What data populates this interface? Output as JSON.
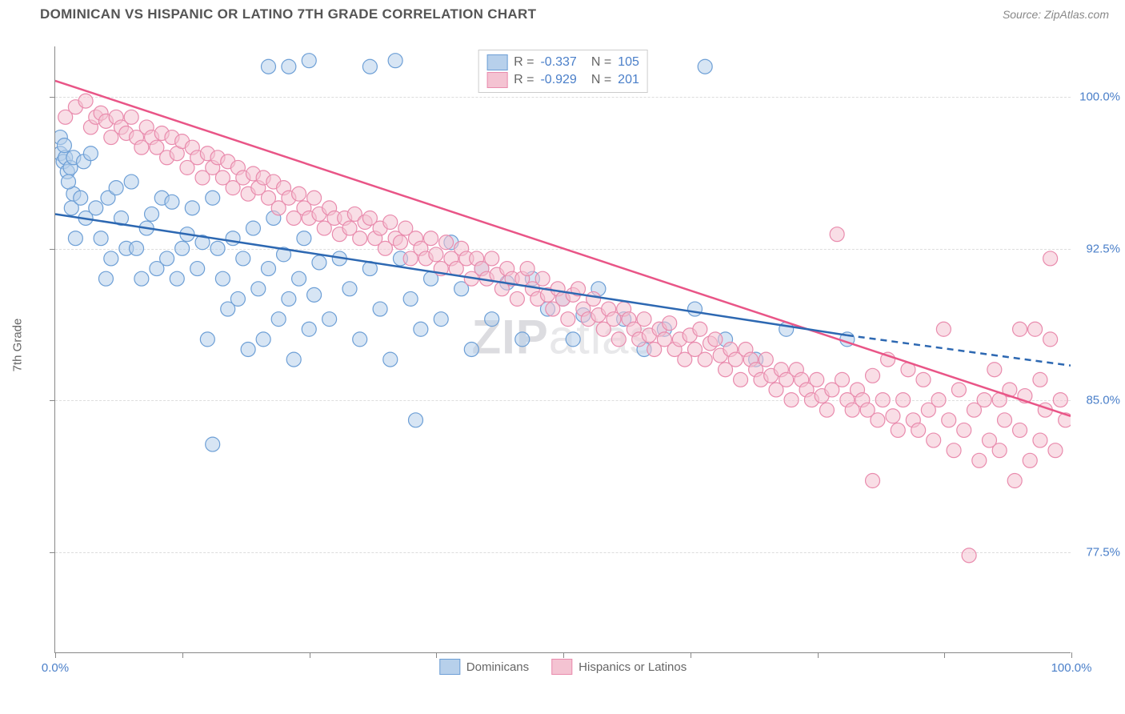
{
  "title": "DOMINICAN VS HISPANIC OR LATINO 7TH GRADE CORRELATION CHART",
  "source": "Source: ZipAtlas.com",
  "ylabel": "7th Grade",
  "watermark": {
    "bold": "ZIP",
    "rest": "atlas"
  },
  "chart": {
    "type": "scatter",
    "xlim": [
      0,
      100
    ],
    "ylim": [
      72.5,
      102.5
    ],
    "xtick_positions": [
      0,
      12.5,
      25,
      37.5,
      50,
      62.5,
      75,
      87.5,
      100
    ],
    "xtick_labels": {
      "0": "0.0%",
      "100": "100.0%"
    },
    "yticks": [
      77.5,
      85.0,
      92.5,
      100.0
    ],
    "ytick_labels": [
      "77.5%",
      "85.0%",
      "92.5%",
      "100.0%"
    ],
    "grid_color": "#dddddd",
    "axis_color": "#888888",
    "background_color": "#ffffff",
    "marker_radius": 9,
    "marker_stroke_width": 1.2,
    "line_width": 2.5,
    "series": [
      {
        "name": "Dominicans",
        "fill": "#b7d0eb",
        "fill_opacity": 0.55,
        "stroke": "#6d9fd6",
        "line_color": "#2d68b2",
        "trend": {
          "x1": 0,
          "y1": 94.2,
          "x2": 78,
          "y2": 88.2,
          "dash_to_x": 100,
          "dash_to_y": 86.7
        },
        "R": "-0.337",
        "N": "105",
        "points": [
          [
            0.5,
            97.2
          ],
          [
            0.8,
            96.8
          ],
          [
            1.0,
            97.0
          ],
          [
            1.2,
            96.3
          ],
          [
            1.5,
            96.5
          ],
          [
            1.8,
            95.2
          ],
          [
            1.8,
            97.0
          ],
          [
            0.5,
            98.0
          ],
          [
            0.9,
            97.6
          ],
          [
            1.3,
            95.8
          ],
          [
            1.6,
            94.5
          ],
          [
            2.0,
            93.0
          ],
          [
            2.5,
            95.0
          ],
          [
            2.8,
            96.8
          ],
          [
            3.0,
            94.0
          ],
          [
            3.5,
            97.2
          ],
          [
            4.0,
            94.5
          ],
          [
            4.5,
            93.0
          ],
          [
            5.0,
            91.0
          ],
          [
            5.2,
            95.0
          ],
          [
            5.5,
            92.0
          ],
          [
            6.0,
            95.5
          ],
          [
            6.5,
            94.0
          ],
          [
            7.0,
            92.5
          ],
          [
            7.5,
            95.8
          ],
          [
            8.0,
            92.5
          ],
          [
            8.5,
            91.0
          ],
          [
            9.0,
            93.5
          ],
          [
            9.5,
            94.2
          ],
          [
            10.0,
            91.5
          ],
          [
            10.5,
            95.0
          ],
          [
            11.0,
            92.0
          ],
          [
            11.5,
            94.8
          ],
          [
            12.0,
            91.0
          ],
          [
            12.5,
            92.5
          ],
          [
            13.0,
            93.2
          ],
          [
            13.5,
            94.5
          ],
          [
            14.0,
            91.5
          ],
          [
            14.5,
            92.8
          ],
          [
            15.0,
            88.0
          ],
          [
            15.5,
            95.0
          ],
          [
            16.0,
            92.5
          ],
          [
            16.5,
            91.0
          ],
          [
            17.0,
            89.5
          ],
          [
            17.5,
            93.0
          ],
          [
            18.0,
            90.0
          ],
          [
            18.5,
            92.0
          ],
          [
            19.0,
            87.5
          ],
          [
            19.5,
            93.5
          ],
          [
            20.0,
            90.5
          ],
          [
            20.5,
            88.0
          ],
          [
            21.0,
            91.5
          ],
          [
            21.5,
            94.0
          ],
          [
            22.0,
            89.0
          ],
          [
            22.5,
            92.2
          ],
          [
            23.0,
            90.0
          ],
          [
            23.5,
            87.0
          ],
          [
            24.0,
            91.0
          ],
          [
            24.5,
            93.0
          ],
          [
            25.0,
            88.5
          ],
          [
            25.5,
            90.2
          ],
          [
            26.0,
            91.8
          ],
          [
            27.0,
            89.0
          ],
          [
            28.0,
            92.0
          ],
          [
            29.0,
            90.5
          ],
          [
            30.0,
            88.0
          ],
          [
            31.0,
            91.5
          ],
          [
            32.0,
            89.5
          ],
          [
            33.0,
            87.0
          ],
          [
            34.0,
            92.0
          ],
          [
            35.0,
            90.0
          ],
          [
            36.0,
            88.5
          ],
          [
            37.0,
            91.0
          ],
          [
            15.5,
            82.8
          ],
          [
            21.0,
            101.5
          ],
          [
            23.0,
            101.5
          ],
          [
            25.0,
            101.8
          ],
          [
            31.0,
            101.5
          ],
          [
            33.5,
            101.8
          ],
          [
            35.5,
            84.0
          ],
          [
            38.0,
            89.0
          ],
          [
            39.0,
            92.8
          ],
          [
            40.0,
            90.5
          ],
          [
            41.0,
            87.5
          ],
          [
            42.0,
            91.5
          ],
          [
            43.0,
            89.0
          ],
          [
            44.5,
            90.8
          ],
          [
            46.0,
            88.0
          ],
          [
            47.0,
            91.0
          ],
          [
            48.5,
            89.5
          ],
          [
            50.0,
            90.0
          ],
          [
            51.0,
            88.0
          ],
          [
            52.0,
            89.2
          ],
          [
            53.5,
            90.5
          ],
          [
            56.0,
            89.0
          ],
          [
            58.0,
            87.5
          ],
          [
            60.0,
            88.5
          ],
          [
            63.0,
            89.5
          ],
          [
            66.0,
            88.0
          ],
          [
            69.0,
            87.0
          ],
          [
            72.0,
            88.5
          ],
          [
            64.0,
            101.5
          ],
          [
            78.0,
            88.0
          ]
        ]
      },
      {
        "name": "Hispanics or Latinos",
        "fill": "#f4c3d2",
        "fill_opacity": 0.55,
        "stroke": "#e98bad",
        "line_color": "#e95587",
        "trend": {
          "x1": 0,
          "y1": 100.8,
          "x2": 100,
          "y2": 84.2
        },
        "R": "-0.929",
        "N": "201",
        "points": [
          [
            1,
            99.0
          ],
          [
            2,
            99.5
          ],
          [
            3,
            99.8
          ],
          [
            3.5,
            98.5
          ],
          [
            4,
            99.0
          ],
          [
            4.5,
            99.2
          ],
          [
            5,
            98.8
          ],
          [
            5.5,
            98.0
          ],
          [
            6,
            99.0
          ],
          [
            6.5,
            98.5
          ],
          [
            7,
            98.2
          ],
          [
            7.5,
            99.0
          ],
          [
            8,
            98.0
          ],
          [
            8.5,
            97.5
          ],
          [
            9,
            98.5
          ],
          [
            9.5,
            98.0
          ],
          [
            10,
            97.5
          ],
          [
            10.5,
            98.2
          ],
          [
            11,
            97.0
          ],
          [
            11.5,
            98.0
          ],
          [
            12,
            97.2
          ],
          [
            12.5,
            97.8
          ],
          [
            13,
            96.5
          ],
          [
            13.5,
            97.5
          ],
          [
            14,
            97.0
          ],
          [
            14.5,
            96.0
          ],
          [
            15,
            97.2
          ],
          [
            15.5,
            96.5
          ],
          [
            16,
            97.0
          ],
          [
            16.5,
            96.0
          ],
          [
            17,
            96.8
          ],
          [
            17.5,
            95.5
          ],
          [
            18,
            96.5
          ],
          [
            18.5,
            96.0
          ],
          [
            19,
            95.2
          ],
          [
            19.5,
            96.2
          ],
          [
            20,
            95.5
          ],
          [
            20.5,
            96.0
          ],
          [
            21,
            95.0
          ],
          [
            21.5,
            95.8
          ],
          [
            22,
            94.5
          ],
          [
            22.5,
            95.5
          ],
          [
            23,
            95.0
          ],
          [
            23.5,
            94.0
          ],
          [
            24,
            95.2
          ],
          [
            24.5,
            94.5
          ],
          [
            25,
            94.0
          ],
          [
            25.5,
            95.0
          ],
          [
            26,
            94.2
          ],
          [
            26.5,
            93.5
          ],
          [
            27,
            94.5
          ],
          [
            27.5,
            94.0
          ],
          [
            28,
            93.2
          ],
          [
            28.5,
            94.0
          ],
          [
            29,
            93.5
          ],
          [
            29.5,
            94.2
          ],
          [
            30,
            93.0
          ],
          [
            30.5,
            93.8
          ],
          [
            31,
            94.0
          ],
          [
            31.5,
            93.0
          ],
          [
            32,
            93.5
          ],
          [
            32.5,
            92.5
          ],
          [
            33,
            93.8
          ],
          [
            33.5,
            93.0
          ],
          [
            34,
            92.8
          ],
          [
            34.5,
            93.5
          ],
          [
            35,
            92.0
          ],
          [
            35.5,
            93.0
          ],
          [
            36,
            92.5
          ],
          [
            36.5,
            92.0
          ],
          [
            37,
            93.0
          ],
          [
            37.5,
            92.2
          ],
          [
            38,
            91.5
          ],
          [
            38.5,
            92.8
          ],
          [
            39,
            92.0
          ],
          [
            39.5,
            91.5
          ],
          [
            40,
            92.5
          ],
          [
            40.5,
            92.0
          ],
          [
            41,
            91.0
          ],
          [
            41.5,
            92.0
          ],
          [
            42,
            91.5
          ],
          [
            42.5,
            91.0
          ],
          [
            43,
            92.0
          ],
          [
            43.5,
            91.2
          ],
          [
            44,
            90.5
          ],
          [
            44.5,
            91.5
          ],
          [
            45,
            91.0
          ],
          [
            45.5,
            90.0
          ],
          [
            46,
            91.0
          ],
          [
            46.5,
            91.5
          ],
          [
            47,
            90.5
          ],
          [
            47.5,
            90.0
          ],
          [
            48,
            91.0
          ],
          [
            48.5,
            90.2
          ],
          [
            49,
            89.5
          ],
          [
            49.5,
            90.5
          ],
          [
            50,
            90.0
          ],
          [
            50.5,
            89.0
          ],
          [
            51,
            90.2
          ],
          [
            51.5,
            90.5
          ],
          [
            52,
            89.5
          ],
          [
            52.5,
            89.0
          ],
          [
            53,
            90.0
          ],
          [
            53.5,
            89.2
          ],
          [
            54,
            88.5
          ],
          [
            54.5,
            89.5
          ],
          [
            55,
            89.0
          ],
          [
            55.5,
            88.0
          ],
          [
            56,
            89.5
          ],
          [
            56.5,
            89.0
          ],
          [
            57,
            88.5
          ],
          [
            57.5,
            88.0
          ],
          [
            58,
            89.0
          ],
          [
            58.5,
            88.2
          ],
          [
            59,
            87.5
          ],
          [
            59.5,
            88.5
          ],
          [
            60,
            88.0
          ],
          [
            60.5,
            88.8
          ],
          [
            61,
            87.5
          ],
          [
            61.5,
            88.0
          ],
          [
            62,
            87.0
          ],
          [
            62.5,
            88.2
          ],
          [
            63,
            87.5
          ],
          [
            63.5,
            88.5
          ],
          [
            64,
            87.0
          ],
          [
            64.5,
            87.8
          ],
          [
            65,
            88.0
          ],
          [
            65.5,
            87.2
          ],
          [
            66,
            86.5
          ],
          [
            66.5,
            87.5
          ],
          [
            67,
            87.0
          ],
          [
            67.5,
            86.0
          ],
          [
            68,
            87.5
          ],
          [
            68.5,
            87.0
          ],
          [
            69,
            86.5
          ],
          [
            69.5,
            86.0
          ],
          [
            70,
            87.0
          ],
          [
            70.5,
            86.2
          ],
          [
            71,
            85.5
          ],
          [
            71.5,
            86.5
          ],
          [
            72,
            86.0
          ],
          [
            72.5,
            85.0
          ],
          [
            73,
            86.5
          ],
          [
            73.5,
            86.0
          ],
          [
            74,
            85.5
          ],
          [
            74.5,
            85.0
          ],
          [
            75,
            86.0
          ],
          [
            75.5,
            85.2
          ],
          [
            76,
            84.5
          ],
          [
            76.5,
            85.5
          ],
          [
            77,
            93.2
          ],
          [
            77.5,
            86.0
          ],
          [
            78,
            85.0
          ],
          [
            78.5,
            84.5
          ],
          [
            79,
            85.5
          ],
          [
            79.5,
            85.0
          ],
          [
            80,
            84.5
          ],
          [
            80.5,
            86.2
          ],
          [
            81,
            84.0
          ],
          [
            81.5,
            85.0
          ],
          [
            82,
            87.0
          ],
          [
            82.5,
            84.2
          ],
          [
            83,
            83.5
          ],
          [
            83.5,
            85.0
          ],
          [
            84,
            86.5
          ],
          [
            84.5,
            84.0
          ],
          [
            85,
            83.5
          ],
          [
            85.5,
            86.0
          ],
          [
            86,
            84.5
          ],
          [
            86.5,
            83.0
          ],
          [
            87,
            85.0
          ],
          [
            87.5,
            88.5
          ],
          [
            88,
            84.0
          ],
          [
            88.5,
            82.5
          ],
          [
            89,
            85.5
          ],
          [
            89.5,
            83.5
          ],
          [
            90,
            77.3
          ],
          [
            90.5,
            84.5
          ],
          [
            91,
            82.0
          ],
          [
            91.5,
            85.0
          ],
          [
            92,
            83.0
          ],
          [
            92.5,
            86.5
          ],
          [
            93,
            82.5
          ],
          [
            93.5,
            84.0
          ],
          [
            94,
            85.5
          ],
          [
            94.5,
            81.0
          ],
          [
            95,
            83.5
          ],
          [
            95.5,
            85.2
          ],
          [
            96,
            82.0
          ],
          [
            96.5,
            88.5
          ],
          [
            97,
            83.0
          ],
          [
            97.5,
            84.5
          ],
          [
            98,
            92.0
          ],
          [
            98.5,
            82.5
          ],
          [
            99,
            85.0
          ],
          [
            99.5,
            84.0
          ],
          [
            98,
            88.0
          ],
          [
            97,
            86.0
          ],
          [
            95,
            88.5
          ],
          [
            93,
            85.0
          ],
          [
            80.5,
            81.0
          ]
        ]
      }
    ]
  },
  "legend_bottom": [
    {
      "label": "Dominicans",
      "fill": "#b7d0eb",
      "stroke": "#6d9fd6"
    },
    {
      "label": "Hispanics or Latinos",
      "fill": "#f4c3d2",
      "stroke": "#e98bad"
    }
  ]
}
